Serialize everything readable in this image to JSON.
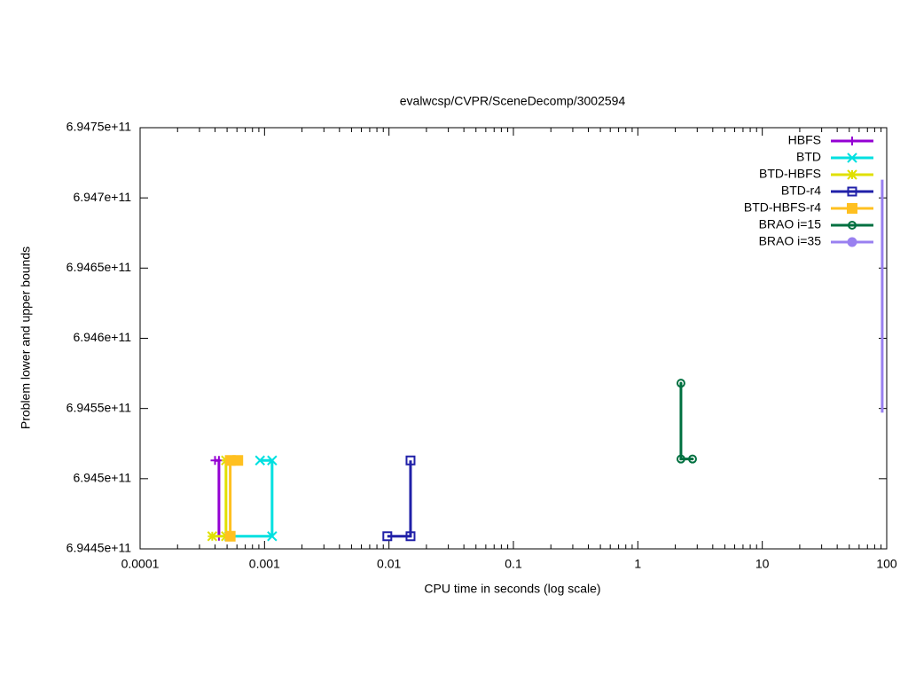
{
  "chart_data": {
    "type": "line",
    "title": "evalwcsp/CVPR/SceneDecomp/3002594",
    "x_label": "CPU time in seconds (log scale)",
    "y_label": "Problem lower and upper bounds",
    "x_log_scale": true,
    "xlim": [
      0.0001,
      100
    ],
    "xticks": [
      0.0001,
      0.001,
      0.01,
      0.1,
      1,
      10,
      100
    ],
    "ylim": [
      694450000000,
      694750000000
    ],
    "yticks": [
      {
        "value": 694450000000,
        "label": "6.9445e+11"
      },
      {
        "value": 694500000000,
        "label": "6.945e+11"
      },
      {
        "value": 694550000000,
        "label": "6.9455e+11"
      },
      {
        "value": 694600000000,
        "label": "6.946e+11"
      },
      {
        "value": 694650000000,
        "label": "6.9465e+11"
      },
      {
        "value": 694700000000,
        "label": "6.947e+11"
      },
      {
        "value": 694750000000,
        "label": "6.9475e+11"
      }
    ],
    "legend": "top-right",
    "series": [
      {
        "name": "HBFS",
        "color": "#9400d3",
        "x": [
          0.0004,
          0.00043,
          0.00043
        ],
        "values": [
          694513000000,
          694513000000,
          694459000000
        ]
      },
      {
        "name": "BTD",
        "color": "#00e0e0",
        "x": [
          0.00092,
          0.00115,
          0.00115,
          0.00052
        ],
        "values": [
          694513000000,
          694513000000,
          694459000000,
          694459000000
        ]
      },
      {
        "name": "BTD-HBFS",
        "color": "#e0e000",
        "x": [
          0.00049,
          0.00049,
          0.00038
        ],
        "values": [
          694513000000,
          694459000000,
          694459000000
        ]
      },
      {
        "name": "BTD-r4",
        "color": "#2020a8",
        "x": [
          0.0149,
          0.0149,
          0.0097
        ],
        "values": [
          694513000000,
          694459000000,
          694459000000
        ]
      },
      {
        "name": "BTD-HBFS-r4",
        "color": "#ffc020",
        "x": [
          0.00061,
          0.00053,
          0.00053
        ],
        "values": [
          694513000000,
          694513000000,
          694459000000
        ]
      },
      {
        "name": "BRAO i=15",
        "color": "#007040",
        "x": [
          2.22,
          2.22,
          2.75
        ],
        "values": [
          694568000000,
          694514000000,
          694514000000
        ]
      },
      {
        "name": "BRAO i=35",
        "color": "#9980f0",
        "x": [
          92,
          92
        ],
        "values": [
          694713000000,
          694547000000
        ]
      }
    ]
  }
}
